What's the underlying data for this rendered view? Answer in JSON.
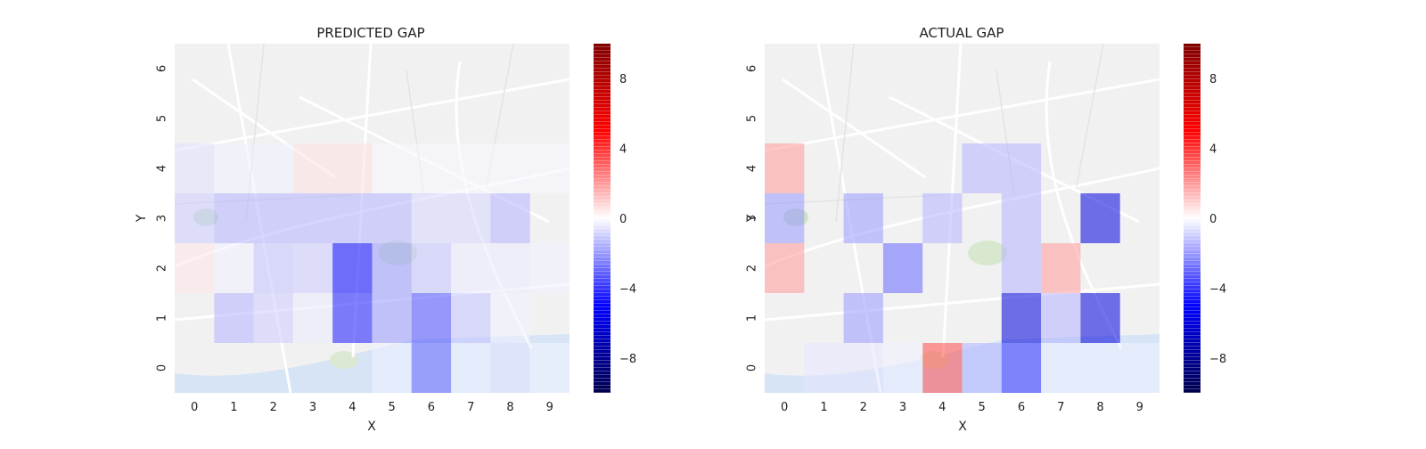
{
  "chart_data": [
    {
      "type": "heatmap",
      "title": "PREDICTED GAP",
      "xlabel": "X",
      "ylabel": "Y",
      "x_categories": [
        "0",
        "1",
        "2",
        "3",
        "4",
        "5",
        "6",
        "7",
        "8",
        "9"
      ],
      "y_categories": [
        "0",
        "1",
        "2",
        "3",
        "4",
        "5",
        "6"
      ],
      "cells": [
        [
          0,
          3,
          -1
        ],
        [
          1,
          3,
          -1.5
        ],
        [
          2,
          3,
          -1.5
        ],
        [
          3,
          3,
          -1.5
        ],
        [
          4,
          3,
          -1.5
        ],
        [
          5,
          3,
          -1.5
        ],
        [
          6,
          3,
          -0.8
        ],
        [
          7,
          3,
          -0.8
        ],
        [
          8,
          3,
          -1.5
        ],
        [
          0,
          4,
          -0.6
        ],
        [
          1,
          4,
          -0.3
        ],
        [
          2,
          4,
          -0.3
        ],
        [
          3,
          4,
          0.6
        ],
        [
          4,
          4,
          0.6
        ],
        [
          5,
          4,
          -0.2
        ],
        [
          6,
          4,
          -0.2
        ],
        [
          7,
          4,
          -0.2
        ],
        [
          8,
          4,
          -0.2
        ],
        [
          9,
          4,
          -0.2
        ],
        [
          0,
          2,
          0.5
        ],
        [
          1,
          2,
          -0.3
        ],
        [
          2,
          2,
          -1.2
        ],
        [
          3,
          2,
          -1
        ],
        [
          4,
          2,
          -5
        ],
        [
          5,
          2,
          -2
        ],
        [
          6,
          2,
          -1.2
        ],
        [
          7,
          2,
          -0.4
        ],
        [
          8,
          2,
          -0.4
        ],
        [
          9,
          2,
          -0.3
        ],
        [
          1,
          1,
          -1.5
        ],
        [
          2,
          1,
          -1
        ],
        [
          3,
          1,
          -0.4
        ],
        [
          4,
          1,
          -4.5
        ],
        [
          5,
          1,
          -2
        ],
        [
          6,
          1,
          -3.5
        ],
        [
          7,
          1,
          -1.2
        ],
        [
          8,
          1,
          -0.3
        ],
        [
          5,
          0,
          -0.3
        ],
        [
          6,
          0,
          -3
        ],
        [
          7,
          0,
          -0.3
        ],
        [
          8,
          0,
          -0.5
        ],
        [
          9,
          0,
          -0.2
        ]
      ],
      "colorbar": {
        "min": -10,
        "max": 10,
        "ticks": [
          -8,
          -4,
          0,
          4,
          8
        ],
        "tick_labels": [
          "−8",
          "−4",
          "0",
          "4",
          "8"
        ],
        "colormap": "seismic"
      }
    },
    {
      "type": "heatmap",
      "title": "ACTUAL GAP",
      "xlabel": "X",
      "ylabel": "Y",
      "x_categories": [
        "0",
        "1",
        "2",
        "3",
        "4",
        "5",
        "6",
        "7",
        "8",
        "9"
      ],
      "y_categories": [
        "0",
        "1",
        "2",
        "3",
        "4",
        "5",
        "6"
      ],
      "cells": [
        [
          0,
          4,
          2
        ],
        [
          0,
          3,
          -2
        ],
        [
          0,
          2,
          2
        ],
        [
          2,
          3,
          -2
        ],
        [
          2,
          1,
          -2
        ],
        [
          3,
          2,
          -3
        ],
        [
          4,
          3,
          -1.5
        ],
        [
          4,
          0,
          3.5
        ],
        [
          5,
          4,
          -1.5
        ],
        [
          6,
          4,
          -1.5
        ],
        [
          6,
          3,
          -1.5
        ],
        [
          6,
          2,
          -1.5
        ],
        [
          6,
          1,
          -6
        ],
        [
          6,
          0,
          -4
        ],
        [
          7,
          2,
          2
        ],
        [
          7,
          1,
          -1.5
        ],
        [
          8,
          3,
          -6
        ],
        [
          8,
          1,
          -6
        ],
        [
          7,
          0,
          -0.3
        ],
        [
          8,
          0,
          -0.3
        ],
        [
          9,
          0,
          -0.3
        ],
        [
          1,
          0,
          -0.5
        ],
        [
          2,
          0,
          -0.5
        ],
        [
          3,
          0,
          -0.3
        ],
        [
          5,
          0,
          -1.5
        ]
      ],
      "colorbar": {
        "min": -10,
        "max": 10,
        "ticks": [
          -8,
          -4,
          0,
          4,
          8
        ],
        "tick_labels": [
          "−8",
          "−4",
          "0",
          "4",
          "8"
        ],
        "colormap": "seismic"
      }
    }
  ]
}
